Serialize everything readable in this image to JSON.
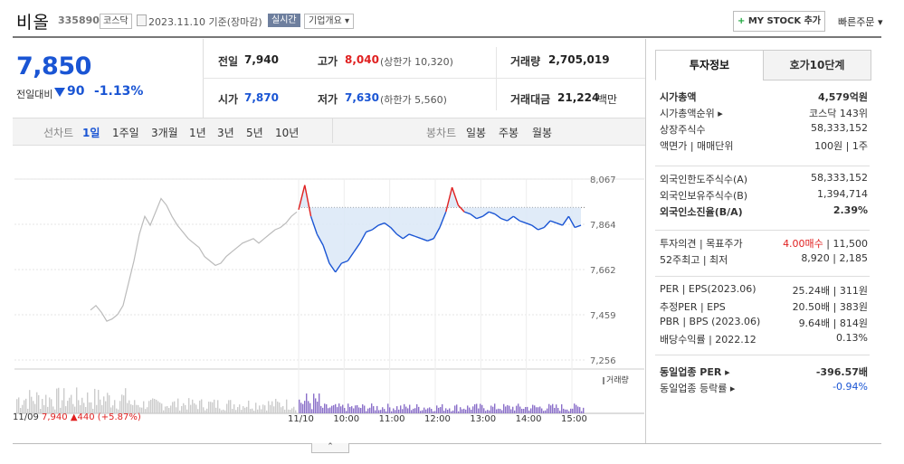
{
  "header": {
    "name": "비올",
    "code": "335890",
    "market_badge": "코스닥",
    "date_text": "2023.11.10  기준(장마감)",
    "realtime_label": "실시간",
    "company_label": "기업개요 ▾",
    "mystock_plus": "+",
    "mystock_label": "MY STOCK 추가",
    "quick_order": "빠른주문 ▾"
  },
  "price": {
    "current": "7,850",
    "change_label": "전일대비",
    "change": "90",
    "change_pct": "-1.13%"
  },
  "summary": {
    "prev_label": "전일",
    "prev": "7,940",
    "high_label": "고가",
    "high": "8,040",
    "upper_limit": "(상한가 10,320)",
    "volume_label": "거래량",
    "volume": "2,705,019",
    "open_label": "시가",
    "open": "7,870",
    "low_label": "저가",
    "low": "7,630",
    "lower_limit": "(하한가 5,560)",
    "amount_label": "거래대금",
    "amount": "21,224",
    "amount_unit": "백만"
  },
  "periods": {
    "line_label": "선차트",
    "line_items": [
      "1일",
      "1주일",
      "3개월",
      "1년",
      "3년",
      "5년",
      "10년"
    ],
    "candle_label": "봉차트",
    "candle_items": [
      "일봉",
      "주봉",
      "월봉"
    ]
  },
  "chart_labels": {
    "volume_legend": "거래량",
    "footer_date": "11/09",
    "footer_price": "7,940",
    "footer_change": "▲440 (+5.87%)"
  },
  "colors": {
    "up": "#e02020",
    "down": "#1a55d4",
    "prev_day_line": "#bbbbbb",
    "volume_prev": "#cccccc",
    "volume_today": "#8a6fc9"
  },
  "chart_data": {
    "type": "line",
    "y_ticks": [
      "8,067",
      "7,864",
      "7,662",
      "7,459",
      "7,256"
    ],
    "ylim": [
      7256,
      8067
    ],
    "x_ticks": [
      "11/10",
      "10:00",
      "11:00",
      "12:00",
      "13:00",
      "14:00",
      "15:00"
    ],
    "prev_close": 7940,
    "series": [
      {
        "name": "11/09",
        "values": [
          7480,
          7500,
          7470,
          7430,
          7440,
          7460,
          7500,
          7600,
          7700,
          7820,
          7900,
          7860,
          7920,
          7980,
          7950,
          7900,
          7860,
          7830,
          7800,
          7780,
          7760,
          7720,
          7700,
          7680,
          7690,
          7720,
          7740,
          7760,
          7780,
          7790,
          7800,
          7780,
          7800,
          7820,
          7840,
          7850,
          7870,
          7900,
          7920
        ]
      },
      {
        "name": "11/10",
        "values": [
          7930,
          8040,
          7900,
          7820,
          7770,
          7690,
          7650,
          7690,
          7700,
          7740,
          7780,
          7830,
          7840,
          7860,
          7870,
          7850,
          7820,
          7800,
          7820,
          7810,
          7800,
          7790,
          7800,
          7850,
          7920,
          8030,
          7950,
          7920,
          7910,
          7890,
          7900,
          7920,
          7910,
          7890,
          7880,
          7900,
          7880,
          7870,
          7860,
          7840,
          7850,
          7880,
          7870,
          7860,
          7900,
          7850,
          7860
        ]
      }
    ]
  },
  "side": {
    "tab_info": "투자정보",
    "tab_orderbook": "호가10단계",
    "rows1": [
      {
        "k": "시가총액",
        "v": "4,579억원",
        "bold": true
      },
      {
        "k": "시가총액순위 ▸",
        "v": "코스닥 143위"
      },
      {
        "k": "상장주식수",
        "v": "58,333,152"
      },
      {
        "k": "액면가 | 매매단위",
        "v": "100원 | 1주"
      }
    ],
    "rows2": [
      {
        "k": "외국인한도주식수(A)",
        "v": "58,333,152"
      },
      {
        "k": "외국인보유주식수(B)",
        "v": "1,394,714"
      },
      {
        "k": "외국인소진율(B/A)",
        "v": "2.39%",
        "bold": true
      }
    ],
    "rows3": [
      {
        "k": "투자의견 | 목표주가",
        "v_red": "4.00매수",
        "v": " | 11,500"
      },
      {
        "k": "52주최고 | 최저",
        "v": "8,920 | 2,185"
      }
    ],
    "rows4": [
      {
        "k": "PER | EPS(2023.06)",
        "v": "25.24배 | 311원"
      },
      {
        "k": "추정PER | EPS",
        "v": "20.50배 | 383원"
      },
      {
        "k": "PBR | BPS (2023.06)",
        "v": "9.64배 | 814원"
      },
      {
        "k": "배당수익률 | 2022.12",
        "v": "0.13%"
      }
    ],
    "rows5": [
      {
        "k": "동일업종 PER ▸",
        "v": "-396.57배",
        "bold": true
      },
      {
        "k": "동일업종 등락률 ▸",
        "v": "-0.94%",
        "blue": true
      }
    ]
  }
}
